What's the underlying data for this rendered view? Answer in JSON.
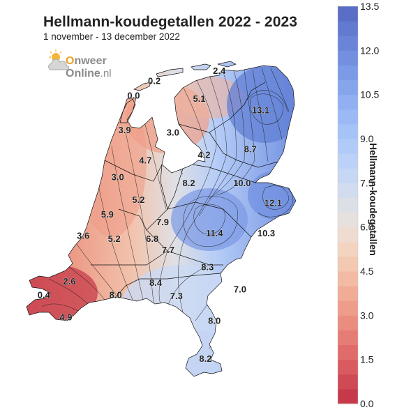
{
  "header": {
    "title": "Hellmann-koudegetallen 2022 - 2023",
    "subtitle": "1 november - 13 december 2022"
  },
  "logo": {
    "brand_a": "nweer",
    "brand_o": "O",
    "brand_b": "Online",
    "brand_tld": ".nl",
    "icon": "cloud-sun-icon"
  },
  "colorbar": {
    "label": "Hellmann-koudegetallen",
    "min": 0.0,
    "max": 13.5,
    "step": 0.5,
    "ticks": [
      "0.0",
      "1.5",
      "3.0",
      "4.5",
      "6.0",
      "7.5",
      "9.0",
      "10.5",
      "12.0",
      "13.5"
    ],
    "colors": [
      "#c6394a",
      "#d04a55",
      "#d95b60",
      "#e06c6a",
      "#e67d74",
      "#ea8d7f",
      "#ee9d8a",
      "#f1ac96",
      "#f3bba3",
      "#f4c9b1",
      "#f3d4c1",
      "#eedcd1",
      "#e6e1de",
      "#dcdfe6",
      "#d1dcee",
      "#c6d7f4",
      "#bcd1f7",
      "#b1cbf8",
      "#a6c3f8",
      "#9bbaf5",
      "#90b0f1",
      "#86a6ec",
      "#7c9be6",
      "#7290df",
      "#6a85d8",
      "#627ad0",
      "#5a6ec7"
    ]
  },
  "stations": [
    {
      "label": "0.2",
      "value": 0.2,
      "lon": 5.18,
      "lat": 53.36
    },
    {
      "label": "2.4",
      "value": 2.4,
      "lon": 6.12,
      "lat": 53.45
    },
    {
      "label": "0.0",
      "value": 0.0,
      "lon": 4.88,
      "lat": 53.23
    },
    {
      "label": "5.1",
      "value": 5.1,
      "lon": 5.83,
      "lat": 53.2
    },
    {
      "label": "13.1",
      "value": 13.1,
      "lon": 6.72,
      "lat": 53.1
    },
    {
      "label": "3.9",
      "value": 3.9,
      "lon": 4.75,
      "lat": 52.92
    },
    {
      "label": "3.0",
      "value": 3.0,
      "lon": 5.45,
      "lat": 52.9
    },
    {
      "label": "8.7",
      "value": 8.7,
      "lon": 6.57,
      "lat": 52.75
    },
    {
      "label": "4.2",
      "value": 4.2,
      "lon": 5.9,
      "lat": 52.7
    },
    {
      "label": "4.7",
      "value": 4.7,
      "lon": 5.05,
      "lat": 52.65
    },
    {
      "label": "3.0",
      "value": 3.0,
      "lon": 4.65,
      "lat": 52.5
    },
    {
      "label": "8.2",
      "value": 8.2,
      "lon": 5.68,
      "lat": 52.45
    },
    {
      "label": "10.0",
      "value": 10.0,
      "lon": 6.45,
      "lat": 52.45
    },
    {
      "label": "12.1",
      "value": 12.1,
      "lon": 6.9,
      "lat": 52.27
    },
    {
      "label": "5.2",
      "value": 5.2,
      "lon": 4.95,
      "lat": 52.3
    },
    {
      "label": "5.9",
      "value": 5.9,
      "lon": 4.5,
      "lat": 52.17
    },
    {
      "label": "7.9",
      "value": 7.9,
      "lon": 5.3,
      "lat": 52.1
    },
    {
      "label": "11.4",
      "value": 11.4,
      "lon": 6.05,
      "lat": 52.0
    },
    {
      "label": "10.3",
      "value": 10.3,
      "lon": 6.8,
      "lat": 52.0
    },
    {
      "label": "3.6",
      "value": 3.6,
      "lon": 4.15,
      "lat": 51.98
    },
    {
      "label": "5.2",
      "value": 5.2,
      "lon": 4.6,
      "lat": 51.95
    },
    {
      "label": "6.8",
      "value": 6.8,
      "lon": 5.15,
      "lat": 51.95
    },
    {
      "label": "7.7",
      "value": 7.7,
      "lon": 5.38,
      "lat": 51.85
    },
    {
      "label": "8.3",
      "value": 8.3,
      "lon": 5.95,
      "lat": 51.7
    },
    {
      "label": "2.6",
      "value": 2.6,
      "lon": 3.95,
      "lat": 51.57
    },
    {
      "label": "8.4",
      "value": 8.4,
      "lon": 5.2,
      "lat": 51.56
    },
    {
      "label": "7.0",
      "value": 7.0,
      "lon": 6.42,
      "lat": 51.5
    },
    {
      "label": "0.4",
      "value": 0.4,
      "lon": 3.58,
      "lat": 51.45
    },
    {
      "label": "8.0",
      "value": 8.0,
      "lon": 4.62,
      "lat": 51.45
    },
    {
      "label": "7.3",
      "value": 7.3,
      "lon": 5.5,
      "lat": 51.44
    },
    {
      "label": "4.9",
      "value": 4.9,
      "lon": 3.9,
      "lat": 51.25
    },
    {
      "label": "8.0",
      "value": 8.0,
      "lon": 6.05,
      "lat": 51.22
    },
    {
      "label": "8.2",
      "value": 8.2,
      "lon": 5.92,
      "lat": 50.88
    }
  ]
}
